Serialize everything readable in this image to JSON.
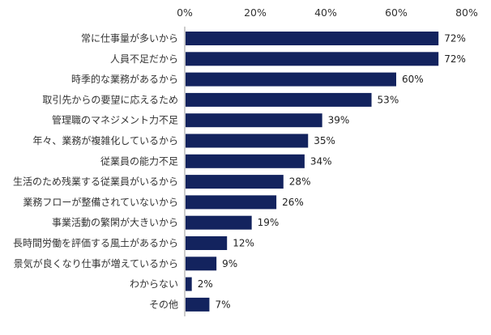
{
  "chart_data": {
    "type": "bar",
    "orientation": "horizontal",
    "title": "",
    "xlabel": "",
    "ylabel": "",
    "xlim": [
      0,
      80
    ],
    "ticks": [
      "0%",
      "20%",
      "40%",
      "60%",
      "80%"
    ],
    "tick_values": [
      0,
      20,
      40,
      60,
      80
    ],
    "grid": false,
    "legend": "none",
    "bar_color": "#13235e",
    "categories": [
      "常に仕事量が多いから",
      "人員不足だから",
      "時季的な業務があるから",
      "取引先からの要望に応えるため",
      "管理職のマネジメント力不足",
      "年々、業務が複雑化しているから",
      "従業員の能力不足",
      "生活のため残業する従業員がいるから",
      "業務フローが整備されていないから",
      "事業活動の繁閑が大きいから",
      "長時間労働を評価する風土があるから",
      "景気が良くなり仕事が増えているから",
      "わからない",
      "その他"
    ],
    "values": [
      72,
      72,
      60,
      53,
      39,
      35,
      34,
      28,
      26,
      19,
      12,
      9,
      2,
      7
    ],
    "value_labels": [
      "72%",
      "72%",
      "60%",
      "53%",
      "39%",
      "35%",
      "34%",
      "28%",
      "26%",
      "19%",
      "12%",
      "9%",
      "2%",
      "7%"
    ]
  }
}
